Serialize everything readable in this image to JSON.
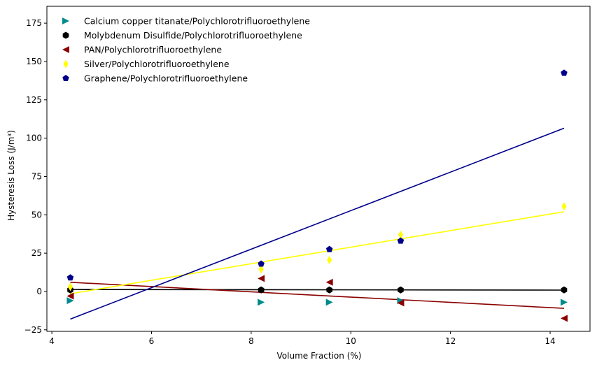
{
  "chart_data": {
    "type": "scatter",
    "xlabel": "Volume Fraction (%)",
    "ylabel": "Hysteresis Loss (J/m³)",
    "xlim": [
      3.9,
      14.8
    ],
    "ylim": [
      -26,
      186
    ],
    "xticks": [
      4,
      6,
      8,
      10,
      12,
      14
    ],
    "yticks": [
      -25,
      0,
      25,
      50,
      75,
      100,
      125,
      150,
      175
    ],
    "grid": false,
    "legend_position": "upper-left",
    "series": [
      {
        "name": "Calcium copper titanate/Polychlorotrifluoroethylene",
        "color": "#008b8b",
        "marker": "triangle-right",
        "x": [
          4.37,
          8.2,
          9.57,
          11.0,
          14.28
        ],
        "y": [
          -6,
          -7,
          -7,
          -6,
          -7
        ]
      },
      {
        "name": "Molybdenum Disulfide/Polychlorotrifluoroethylene",
        "color": "#000000",
        "marker": "hexagon",
        "x": [
          4.37,
          8.2,
          9.57,
          11.0,
          14.28
        ],
        "y": [
          1,
          1,
          1,
          1,
          1
        ],
        "fit": {
          "x": [
            4.37,
            14.28
          ],
          "y": [
            1.3,
            0.9
          ]
        }
      },
      {
        "name": "PAN/Polychlorotrifluoroethylene",
        "color": "#8b0000",
        "marker": "triangle-left",
        "x": [
          4.37,
          8.2,
          9.57,
          11.0,
          14.28
        ],
        "y": [
          -3,
          8.5,
          6,
          -7.5,
          -17.5
        ],
        "fit": {
          "x": [
            4.37,
            14.28
          ],
          "y": [
            6,
            -11
          ]
        }
      },
      {
        "name": "Silver/Polychlorotrifluoroethylene",
        "color": "#ffff00",
        "marker": "thin-diamond",
        "x": [
          4.37,
          8.2,
          9.57,
          11.0,
          14.28
        ],
        "y": [
          3,
          14.5,
          20.5,
          37,
          55.5
        ],
        "fit": {
          "x": [
            4.37,
            14.28
          ],
          "y": [
            -1.5,
            52
          ]
        }
      },
      {
        "name": "Graphene/Polychlorotrifluoroethylene",
        "color": "#00008b",
        "marker": "pentagon",
        "x": [
          4.37,
          8.2,
          9.57,
          11.0,
          14.28
        ],
        "y": [
          9,
          18,
          27.5,
          33,
          142.5
        ],
        "fit": {
          "x": [
            4.37,
            14.28
          ],
          "y": [
            -18,
            106.5
          ]
        }
      }
    ]
  }
}
